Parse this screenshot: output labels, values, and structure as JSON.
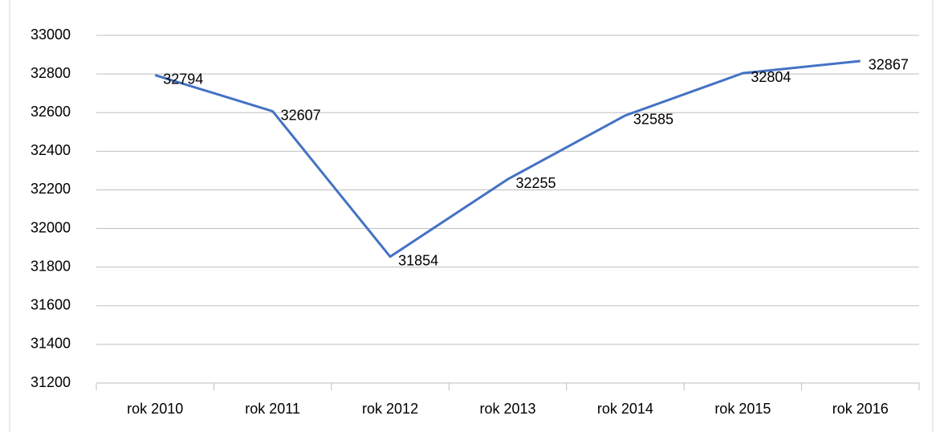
{
  "chart_data": {
    "type": "line",
    "categories": [
      "rok 2010",
      "rok 2011",
      "rok 2012",
      "rok 2013",
      "rok 2014",
      "rok 2015",
      "rok 2016"
    ],
    "series": [
      {
        "name": "",
        "color": "#4472c4",
        "values": [
          32794,
          32607,
          31854,
          32255,
          32585,
          32804,
          32867
        ]
      }
    ],
    "ylim": [
      31200,
      33000
    ],
    "yticks": [
      31200,
      31400,
      31600,
      31800,
      32000,
      32200,
      32400,
      32600,
      32800,
      33000
    ],
    "grid": true,
    "data_labels": true
  }
}
